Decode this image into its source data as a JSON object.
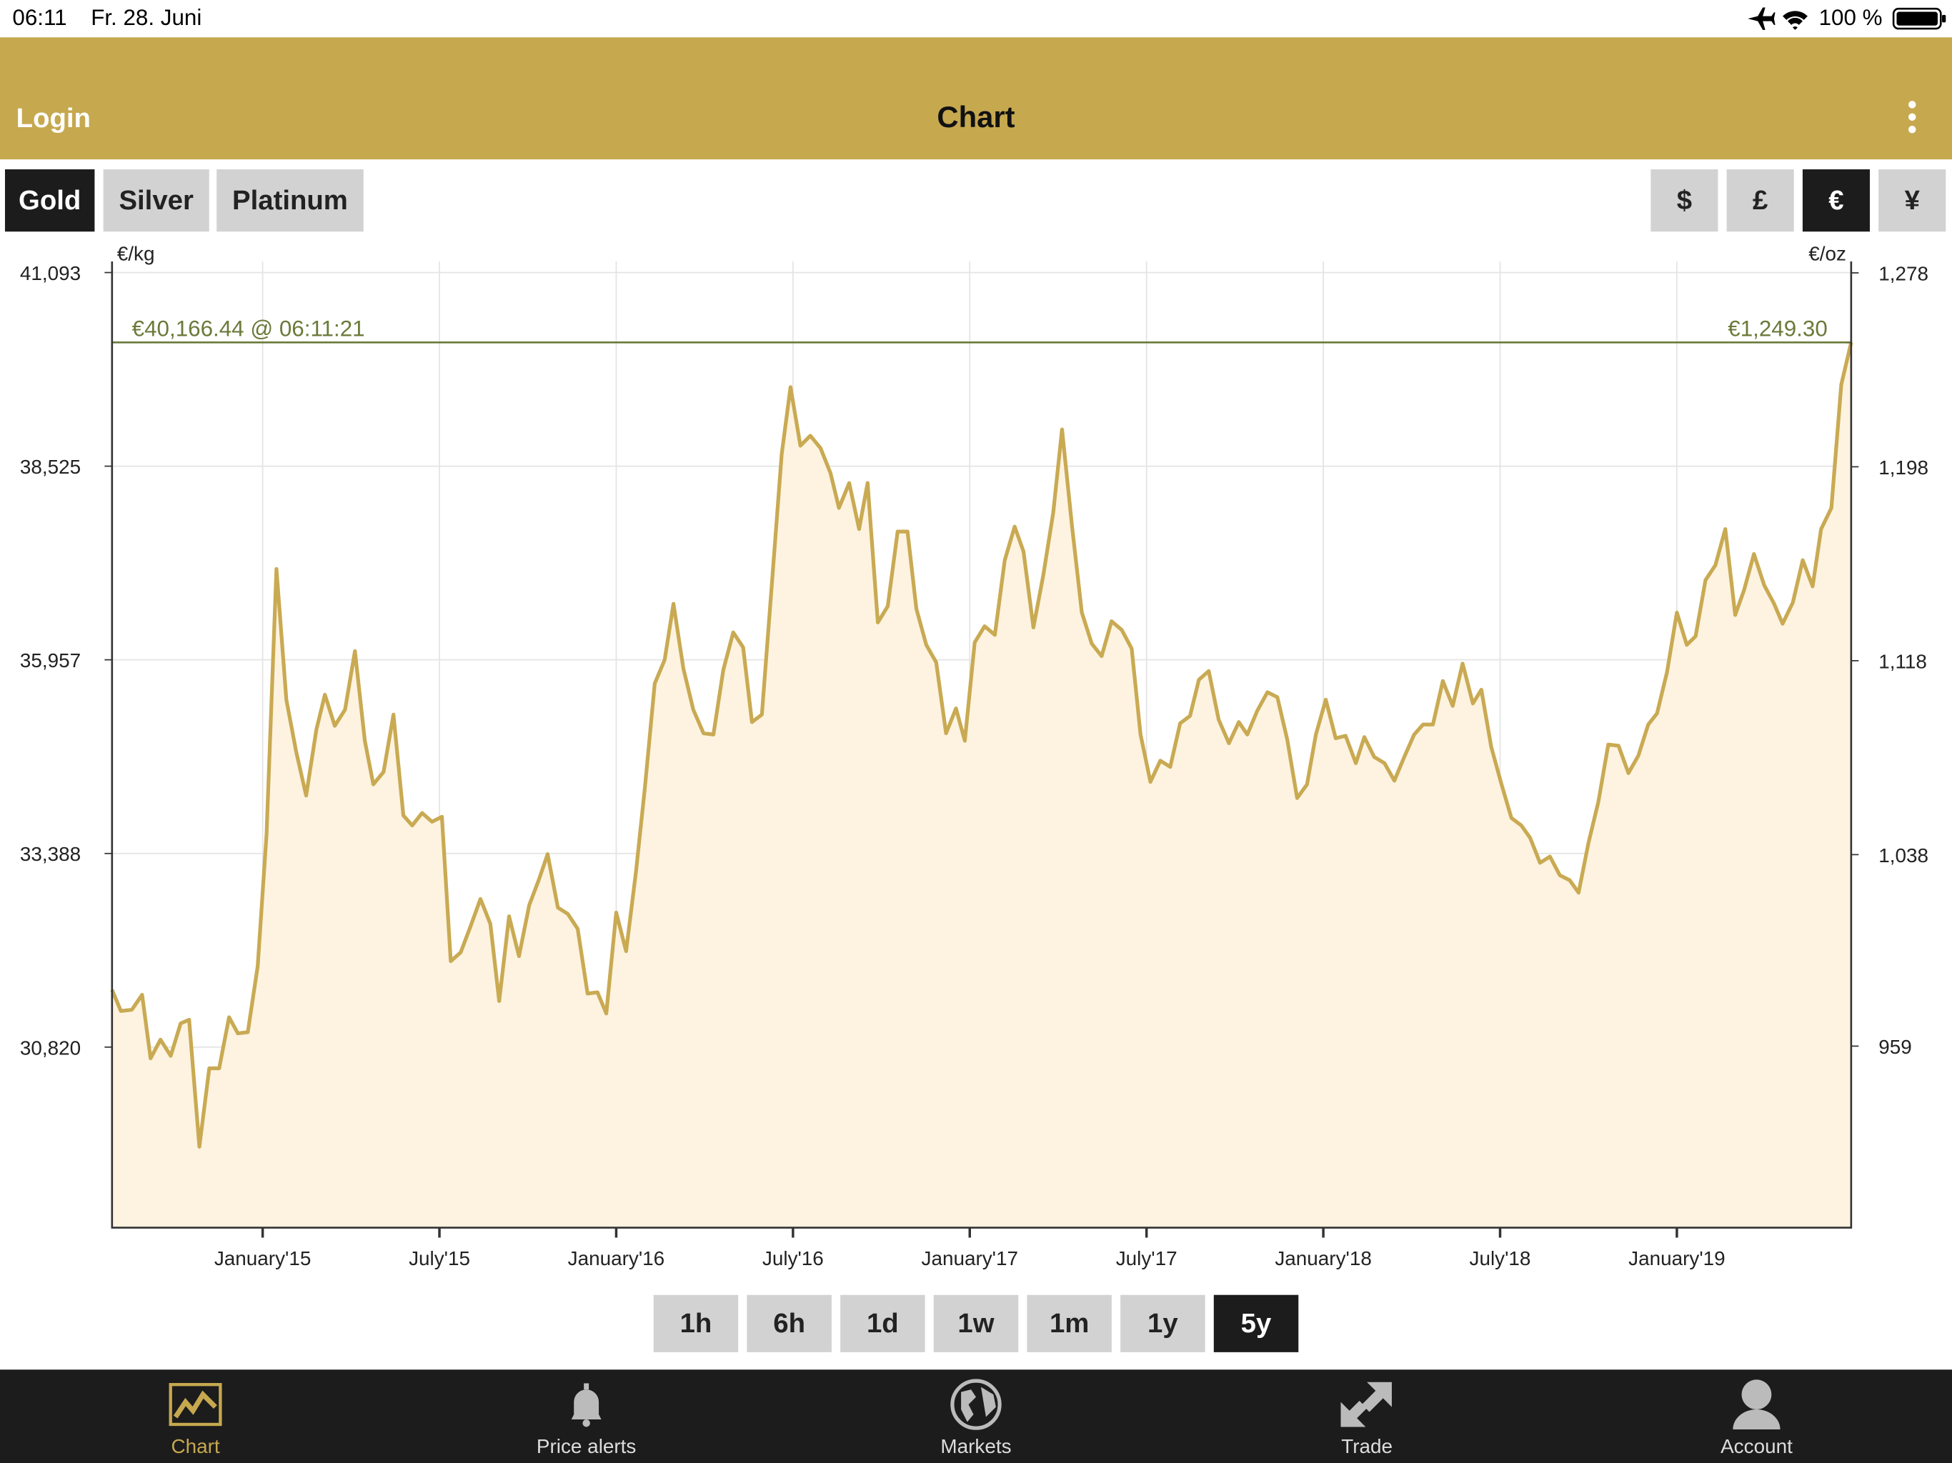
{
  "status_bar": {
    "time": "06:11",
    "date": "Fr. 28. Juni",
    "battery": "100 %"
  },
  "header": {
    "left": "Login",
    "title": "Chart"
  },
  "metal_tabs": {
    "items": [
      "Gold",
      "Silver",
      "Platinum"
    ],
    "active_index": 0
  },
  "currency_tabs": {
    "items": [
      "$",
      "£",
      "€",
      "¥"
    ],
    "active_index": 2
  },
  "chart_data": {
    "type": "line",
    "y_label": "€/kg",
    "y2_label": "€/oz",
    "color": "#c9aa53",
    "fill": "#fdf3e0",
    "grid": true,
    "x": [
      2014.574,
      2014.599,
      2014.63,
      2014.659,
      2014.683,
      2014.711,
      2014.74,
      2014.768,
      2014.792,
      2014.821,
      2014.849,
      2014.877,
      2014.905,
      2014.93,
      2014.958,
      2014.986,
      2015.011,
      2015.039,
      2015.067,
      2015.095,
      2015.123,
      2015.152,
      2015.176,
      2015.204,
      2015.233,
      2015.261,
      2015.289,
      2015.313,
      2015.342,
      2015.37,
      2015.398,
      2015.423,
      2015.451,
      2015.479,
      2015.507,
      2015.532,
      2015.56,
      2015.588,
      2015.616,
      2015.644,
      2015.669,
      2015.697,
      2015.725,
      2015.754,
      2015.782,
      2015.806,
      2015.835,
      2015.863,
      2015.891,
      2015.919,
      2015.947,
      2015.972,
      2016.0,
      2016.028,
      2016.056,
      2016.081,
      2016.109,
      2016.137,
      2016.162,
      2016.19,
      2016.218,
      2016.247,
      2016.275,
      2016.303,
      2016.331,
      2016.359,
      2016.384,
      2016.412,
      2016.44,
      2016.468,
      2016.493,
      2016.521,
      2016.549,
      2016.578,
      2016.606,
      2016.63,
      2016.659,
      2016.687,
      2016.711,
      2016.74,
      2016.768,
      2016.796,
      2016.824,
      2016.849,
      2016.877,
      2016.905,
      2016.933,
      2016.961,
      2016.986,
      2017.014,
      2017.042,
      2017.071,
      2017.099,
      2017.127,
      2017.152,
      2017.18,
      2017.208,
      2017.236,
      2017.261,
      2017.289,
      2017.317,
      2017.345,
      2017.373,
      2017.401,
      2017.43,
      2017.458,
      2017.483,
      2017.511,
      2017.539,
      2017.567,
      2017.595,
      2017.623,
      2017.648,
      2017.676,
      2017.704,
      2017.733,
      2017.761,
      2017.785,
      2017.813,
      2017.842,
      2017.87,
      2017.898,
      2017.926,
      2017.954,
      2017.979,
      2018.007,
      2018.035,
      2018.063,
      2018.092,
      2018.116,
      2018.144,
      2018.173,
      2018.201,
      2018.229,
      2018.257,
      2018.282,
      2018.31,
      2018.338,
      2018.366,
      2018.394,
      2018.423,
      2018.447,
      2018.475,
      2018.504,
      2018.532,
      2018.56,
      2018.585,
      2018.613,
      2018.641,
      2018.669,
      2018.697,
      2018.722,
      2018.75,
      2018.778,
      2018.806,
      2018.835,
      2018.863,
      2018.891,
      2018.919,
      2018.944,
      2018.972,
      2019.0,
      2019.028,
      2019.053,
      2019.081,
      2019.109,
      2019.137,
      2019.165,
      2019.19,
      2019.218,
      2019.247,
      2019.275,
      2019.299,
      2019.328,
      2019.356,
      2019.384,
      2019.408,
      2019.437,
      2019.465,
      2019.493
    ],
    "values": [
      31580,
      31299,
      31315,
      31514,
      30671,
      30919,
      30704,
      31134,
      31183,
      29499,
      30539,
      30539,
      31216,
      31002,
      31018,
      31894,
      33644,
      37162,
      35428,
      34734,
      34156,
      35032,
      35494,
      35081,
      35296,
      36072,
      34883,
      34305,
      34470,
      35230,
      33892,
      33760,
      33925,
      33809,
      33875,
      31960,
      32075,
      32422,
      32785,
      32455,
      31431,
      32554,
      32026,
      32703,
      33050,
      33380,
      32670,
      32587,
      32389,
      31530,
      31547,
      31266,
      32604,
      32092,
      33149,
      34255,
      35643,
      35956,
      36700,
      35841,
      35296,
      34982,
      34966,
      35824,
      36320,
      36122,
      35131,
      35230,
      36947,
      38682,
      39573,
      38797,
      38929,
      38764,
      38434,
      37971,
      38302,
      37691,
      38302,
      36452,
      36667,
      37658,
      37658,
      36634,
      36155,
      35923,
      34982,
      35312,
      34883,
      36188,
      36402,
      36287,
      37278,
      37724,
      37393,
      36386,
      37080,
      37905,
      39012,
      37740,
      36584,
      36171,
      36006,
      36468,
      36353,
      36105,
      34966,
      34338,
      34619,
      34536,
      35114,
      35213,
      35692,
      35808,
      35164,
      34850,
      35131,
      34966,
      35279,
      35527,
      35461,
      34899,
      34123,
      34305,
      34966,
      35428,
      34916,
      34949,
      34586,
      34932,
      34668,
      34586,
      34354,
      34668,
      34966,
      35098,
      35098,
      35676,
      35345,
      35907,
      35378,
      35560,
      34800,
      34305,
      33859,
      33760,
      33595,
      33264,
      33347,
      33099,
      33033,
      32868,
      33529,
      34074,
      34833,
      34817,
      34454,
      34685,
      35098,
      35246,
      35791,
      36584,
      36155,
      36270,
      37014,
      37212,
      37691,
      36551,
      36881,
      37360,
      36947,
      36700,
      36435,
      36716,
      37278,
      36931,
      37691,
      37971,
      39607,
      40166.44
    ],
    "xlim": [
      2014.574,
      2019.493
    ],
    "ylim": [
      28425,
      41240
    ],
    "y2lim": [
      884.1,
      1282.7
    ],
    "xticks": [
      {
        "value": 2015,
        "label": "January'15"
      },
      {
        "value": 2015.5,
        "label": "July'15"
      },
      {
        "value": 2016,
        "label": "January'16"
      },
      {
        "value": 2016.5,
        "label": "July'16"
      },
      {
        "value": 2017,
        "label": "January'17"
      },
      {
        "value": 2017.5,
        "label": "July'17"
      },
      {
        "value": 2018,
        "label": "January'18"
      },
      {
        "value": 2018.5,
        "label": "July'18"
      },
      {
        "value": 2019,
        "label": "January'19"
      }
    ],
    "yticks": [
      {
        "value": 41093,
        "label": "41,093"
      },
      {
        "value": 38525,
        "label": "38,525"
      },
      {
        "value": 35957,
        "label": "35,957"
      },
      {
        "value": 33388,
        "label": "33,388"
      },
      {
        "value": 30820,
        "label": "30,820"
      }
    ],
    "y2ticks": [
      {
        "value": 1278,
        "label": "1,278"
      },
      {
        "value": 1198,
        "label": "1,198"
      },
      {
        "value": 1118,
        "label": "1,118"
      },
      {
        "value": 1038,
        "label": "1,038"
      },
      959
    ],
    "current_price": {
      "value": 40166.44,
      "label": "€40,166.44 @ 06:11:21",
      "value_y2": 1249.3,
      "label_y2": "€1,249.30"
    }
  },
  "range_buttons": {
    "items": [
      "1h",
      "6h",
      "1d",
      "1w",
      "1m",
      "1y",
      "5y"
    ],
    "active_index": 6
  },
  "tab_bar": {
    "items": [
      "Chart",
      "Price alerts",
      "Markets",
      "Trade",
      "Account"
    ],
    "active_index": 0
  }
}
